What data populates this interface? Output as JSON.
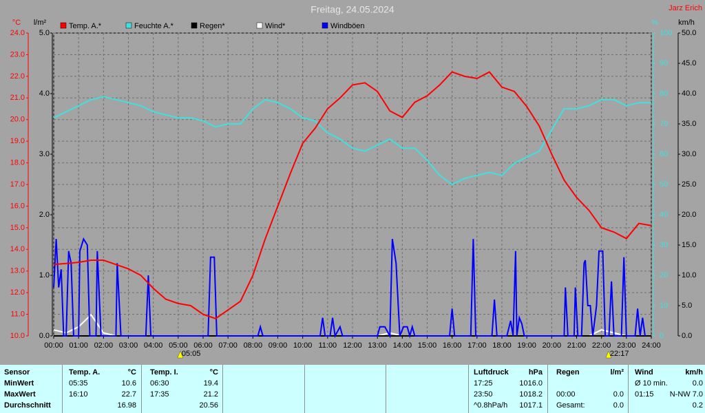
{
  "chart_data": {
    "type": "line",
    "title": "Freitag, 24.05.2024",
    "author": "Jarz Erich",
    "ylabel": "°C",
    "y2label": "l/m²",
    "y3label": "%",
    "y4label": "km/h",
    "xlim": [
      0,
      24
    ],
    "xticks": [
      {
        "value": 0,
        "label": "00:00"
      },
      {
        "value": 1,
        "label": "01:00"
      },
      {
        "value": 2,
        "label": "02:00"
      },
      {
        "value": 3,
        "label": "03:00"
      },
      {
        "value": 4,
        "label": "04:00"
      },
      {
        "value": 5,
        "label": "05:00"
      },
      {
        "value": 6,
        "label": "06:00"
      },
      {
        "value": 7,
        "label": "07:00"
      },
      {
        "value": 8,
        "label": "08:00"
      },
      {
        "value": 9,
        "label": "09:00"
      },
      {
        "value": 10,
        "label": "10:00"
      },
      {
        "value": 11,
        "label": "11:00"
      },
      {
        "value": 12,
        "label": "12:00"
      },
      {
        "value": 13,
        "label": "13:00"
      },
      {
        "value": 14,
        "label": "14:00"
      },
      {
        "value": 15,
        "label": "15:00"
      },
      {
        "value": 16,
        "label": "16:00"
      },
      {
        "value": 17,
        "label": "17:00"
      },
      {
        "value": 18,
        "label": "18:00"
      },
      {
        "value": 19,
        "label": "19:00"
      },
      {
        "value": 20,
        "label": "20:00"
      },
      {
        "value": 21,
        "label": "21:00"
      },
      {
        "value": 22,
        "label": "22:00"
      },
      {
        "value": 23,
        "label": "23:00"
      },
      {
        "value": 24,
        "label": "24:00"
      }
    ],
    "ylim": [
      10,
      24
    ],
    "yticks": [
      {
        "value": 10,
        "label": "10.0"
      },
      {
        "value": 11,
        "label": "11.0"
      },
      {
        "value": 12,
        "label": "12.0"
      },
      {
        "value": 13,
        "label": "13.0"
      },
      {
        "value": 14,
        "label": "14.0"
      },
      {
        "value": 15,
        "label": "15.0"
      },
      {
        "value": 16,
        "label": "16.0"
      },
      {
        "value": 17,
        "label": "17.0"
      },
      {
        "value": 18,
        "label": "18.0"
      },
      {
        "value": 19,
        "label": "19.0"
      },
      {
        "value": 20,
        "label": "20.0"
      },
      {
        "value": 21,
        "label": "21.0"
      },
      {
        "value": 22,
        "label": "22.0"
      },
      {
        "value": 23,
        "label": "23.0"
      },
      {
        "value": 24,
        "label": "24.0"
      }
    ],
    "y2lim": [
      0,
      5
    ],
    "y2ticks": [
      {
        "value": 0,
        "label": "0.0"
      },
      {
        "value": 1,
        "label": "1.0"
      },
      {
        "value": 2,
        "label": "2.0"
      },
      {
        "value": 3,
        "label": "3.0"
      },
      {
        "value": 4,
        "label": "4.0"
      },
      {
        "value": 5,
        "label": "5.0"
      }
    ],
    "y3lim": [
      0,
      100
    ],
    "y3ticks": [
      0,
      10,
      20,
      30,
      40,
      50,
      60,
      70,
      80,
      90,
      100
    ],
    "y4lim": [
      0,
      50
    ],
    "y4ticks": [
      {
        "value": 0,
        "label": "0.0"
      },
      {
        "value": 5,
        "label": "5.0"
      },
      {
        "value": 10,
        "label": "10.0"
      },
      {
        "value": 15,
        "label": "15.0"
      },
      {
        "value": 20,
        "label": "20.0"
      },
      {
        "value": 25,
        "label": "25.0"
      },
      {
        "value": 30,
        "label": "30.0"
      },
      {
        "value": 35,
        "label": "35.0"
      },
      {
        "value": 40,
        "label": "40.0"
      },
      {
        "value": 45,
        "label": "45.0"
      },
      {
        "value": 50,
        "label": "50.0"
      }
    ],
    "grid": true,
    "x": [
      0,
      0.5,
      1,
      1.5,
      2,
      2.5,
      3,
      3.5,
      4,
      4.5,
      5,
      5.5,
      6,
      6.5,
      7,
      7.5,
      8,
      8.5,
      9,
      9.5,
      10,
      10.5,
      11,
      11.5,
      12,
      12.5,
      13,
      13.5,
      14,
      14.5,
      15,
      15.5,
      16,
      16.5,
      17,
      17.5,
      18,
      18.5,
      19,
      19.5,
      20,
      20.5,
      21,
      21.5,
      22,
      22.5,
      23,
      23.5,
      24
    ],
    "series": [
      {
        "name": "Temp. A.*",
        "color": "#ff0000",
        "axis": "y",
        "values": [
          13.3,
          13.35,
          13.4,
          13.5,
          13.5,
          13.3,
          13.1,
          12.8,
          12.2,
          11.7,
          11.5,
          11.4,
          11.0,
          10.8,
          11.2,
          11.6,
          12.8,
          14.5,
          16.0,
          17.5,
          18.9,
          19.6,
          20.5,
          21.0,
          21.6,
          21.7,
          21.3,
          20.4,
          20.1,
          20.8,
          21.1,
          21.6,
          22.2,
          22.0,
          21.9,
          22.2,
          21.5,
          21.3,
          20.6,
          19.7,
          18.4,
          17.2,
          16.4,
          15.8,
          15.0,
          14.8,
          14.5,
          15.2,
          15.1
        ]
      },
      {
        "name": "Feuchte A.*",
        "color": "#40e0e0",
        "axis": "y3",
        "values": [
          72,
          74,
          76,
          78,
          79,
          78,
          77,
          76,
          74,
          73,
          72,
          72,
          71,
          69,
          70,
          70,
          75,
          78,
          77,
          75,
          72,
          71,
          67,
          65,
          62,
          61,
          63,
          65,
          62,
          62,
          58,
          53,
          50,
          52,
          53,
          54,
          53,
          57,
          59,
          61,
          68,
          75,
          75,
          76,
          78,
          78,
          76,
          77,
          77
        ]
      },
      {
        "name": "Regen*",
        "color": "#000000",
        "axis": "y2",
        "x": [
          0,
          24
        ],
        "values": [
          0,
          0
        ]
      },
      {
        "name": "Wind*",
        "color": "#ffffff",
        "axis": "y4",
        "values": [
          1,
          0.5,
          1.5,
          3.5,
          0.5,
          0,
          0,
          0,
          0,
          0,
          0,
          0,
          0,
          0,
          0,
          0,
          0,
          0,
          0,
          0,
          0,
          0,
          0,
          0,
          0,
          0,
          0,
          0.5,
          0,
          0,
          0,
          0,
          0,
          0,
          0,
          0,
          0,
          0,
          0,
          0,
          0,
          0,
          0,
          0,
          1,
          0.5,
          0,
          0,
          0
        ]
      },
      {
        "name": "Windböen",
        "color": "#0000ff",
        "axis": "y4",
        "x": [
          0,
          0.1,
          0.2,
          0.3,
          0.4,
          0.5,
          0.6,
          0.7,
          0.8,
          1.0,
          1.05,
          1.2,
          1.35,
          1.45,
          1.7,
          1.75,
          1.9,
          2.5,
          2.55,
          2.7,
          3.7,
          3.8,
          3.9,
          6.2,
          6.3,
          6.45,
          6.55,
          8.2,
          8.3,
          8.4,
          10.7,
          10.8,
          10.9,
          11.1,
          11.2,
          11.3,
          11.5,
          11.6,
          13.0,
          13.1,
          13.3,
          13.5,
          13.6,
          13.75,
          13.9,
          14.05,
          14.2,
          14.3,
          14.4,
          14.5,
          15.9,
          16.0,
          16.1,
          16.75,
          16.85,
          16.95,
          17.6,
          17.7,
          17.8,
          18.2,
          18.35,
          18.45,
          18.55,
          18.6,
          18.7,
          18.8,
          18.9,
          20.5,
          20.55,
          20.65,
          20.9,
          20.95,
          21.05,
          21.2,
          21.3,
          21.35,
          21.45,
          21.55,
          21.65,
          21.8,
          21.9,
          22.05,
          22.15,
          22.3,
          22.4,
          22.5,
          22.8,
          22.9,
          23.0,
          23.35,
          23.45,
          23.55,
          23.65,
          23.75
        ],
        "values": [
          8,
          16,
          8,
          11,
          0,
          0,
          14,
          12,
          0,
          0,
          14,
          16,
          15,
          0,
          0,
          14,
          0,
          0,
          12,
          0,
          0,
          10,
          0,
          0,
          13,
          13,
          0,
          0,
          1.5,
          0,
          0,
          3,
          0,
          0,
          3,
          0,
          1.5,
          0,
          0,
          1.5,
          1.5,
          0,
          16,
          12,
          0,
          1.5,
          1.5,
          0,
          1.5,
          0,
          0,
          4.5,
          0,
          0,
          16,
          0,
          0,
          6,
          0,
          0,
          2.5,
          0,
          14,
          0,
          3,
          2,
          0,
          0,
          8,
          0,
          0,
          8,
          0,
          0,
          12,
          12.5,
          5,
          5,
          0,
          5,
          14,
          14,
          0,
          0,
          9,
          0,
          0,
          13,
          0,
          0,
          4.5,
          0,
          3,
          0
        ]
      }
    ],
    "annotations": [
      {
        "x": 5.0833,
        "label": "05:05"
      },
      {
        "x": 22.2833,
        "label": "22:17"
      }
    ]
  },
  "table": {
    "header": [
      "Sensor",
      "Temp. A.",
      "°C",
      "Temp. I.",
      "°C",
      "Luftdruck",
      "hPa",
      "Regen",
      "l/m²",
      "Wind",
      "km/h"
    ],
    "rows": [
      [
        "MinWert",
        "05:35",
        "10.6",
        "06:30",
        "19.4",
        "17:25",
        "1016.0",
        null,
        null,
        "Ø 10 min.",
        "0.0"
      ],
      [
        "MaxWert",
        "16:10",
        "22.7",
        "17:35",
        "21.2",
        "23:50",
        "1018.2",
        "00:00",
        "0.0",
        "01:15",
        "N-NW 7.0"
      ],
      [
        "Durchschnitt",
        null,
        "16.98",
        null,
        "20.56",
        "^0.8hPa/h",
        "1017.1",
        "Gesamt:",
        "0.0",
        null,
        "0.2"
      ]
    ]
  }
}
